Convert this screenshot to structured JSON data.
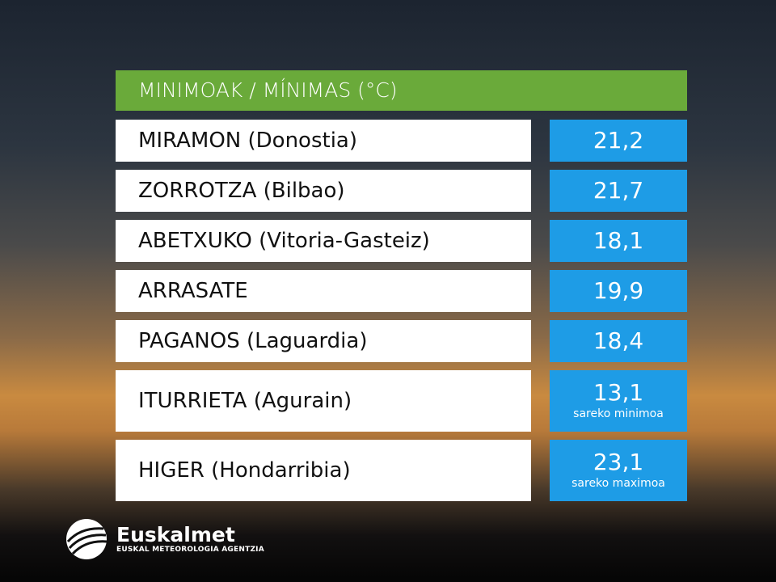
{
  "header": {
    "title": "MINIMOAK / MÍNIMAS (°C)"
  },
  "table": {
    "rows": [
      {
        "station": "MIRAMON (Donostia)",
        "value": "21,2"
      },
      {
        "station": "ZORROTZA (Bilbao)",
        "value": "21,7"
      },
      {
        "station": "ABETXUKO (Vitoria-Gasteiz)",
        "value": "18,1"
      },
      {
        "station": "ARRASATE",
        "value": "19,9"
      },
      {
        "station": "PAGANOS (Laguardia)",
        "value": "18,4"
      },
      {
        "station": "ITURRIETA (Agurain)",
        "value": "13,1",
        "note": "sareko minimoa"
      },
      {
        "station": "HIGER (Hondarribia)",
        "value": "23,1",
        "note": "sareko maximoa"
      }
    ]
  },
  "logo": {
    "name": "Euskalmet",
    "subtitle": "EUSKAL METEOROLOGIA AGENTZIA"
  }
}
